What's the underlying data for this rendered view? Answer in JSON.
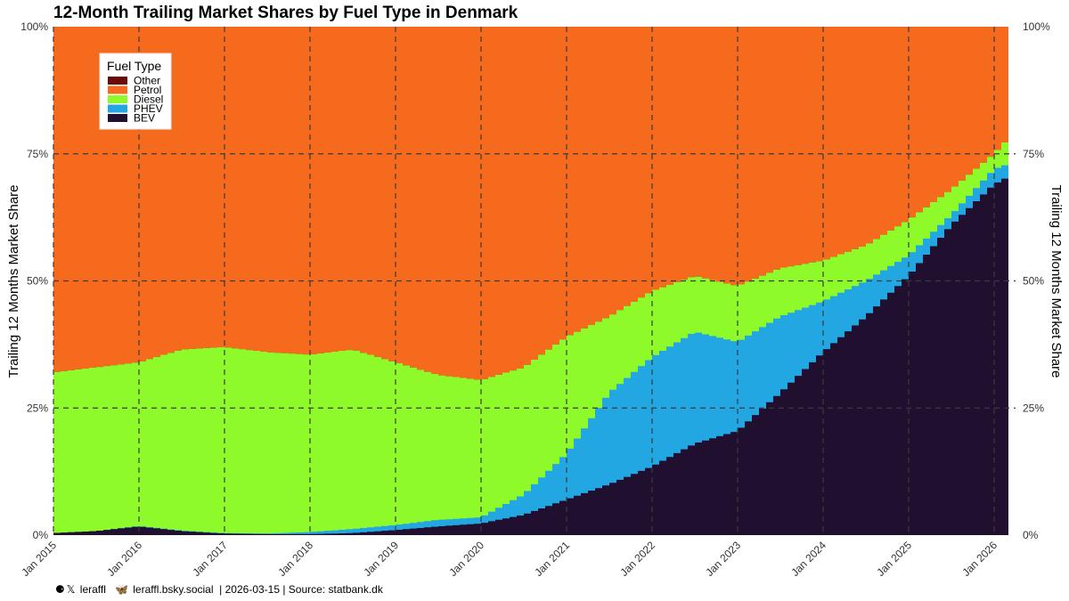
{
  "chart_data": {
    "type": "area",
    "stacked": true,
    "title": "12-Month Trailing Market Shares by Fuel Type in Denmark",
    "ylabel_left": "Trailing 12 Months Market Share",
    "ylabel_right": "Trailing 12 Months Market Share",
    "xlabel": "",
    "ylim": [
      0,
      100
    ],
    "y_ticks": [
      "0%",
      "25%",
      "50%",
      "75%",
      "100%"
    ],
    "x_ticks": [
      "Jan 2015",
      "Jan 2016",
      "Jan 2017",
      "Jan 2018",
      "Jan 2019",
      "Jan 2020",
      "Jan 2021",
      "Jan 2022",
      "Jan 2023",
      "Jan 2024",
      "Jan 2025",
      "Jan 2026"
    ],
    "x_start": "Jan 2015",
    "x_end": "Feb 2026",
    "legend_title": "Fuel Type",
    "legend_position": "top-left",
    "series": [
      {
        "name": "Other",
        "color": "#6b0a0a"
      },
      {
        "name": "Petrol",
        "color": "#f66a1e"
      },
      {
        "name": "Diesel",
        "color": "#8efa2a"
      },
      {
        "name": "PHEV",
        "color": "#22a7e3"
      },
      {
        "name": "BEV",
        "color": "#210f30"
      }
    ],
    "keypoints_cumulative": {
      "t_months": [
        0,
        6,
        12,
        18,
        24,
        30,
        36,
        42,
        48,
        54,
        60,
        66,
        72,
        78,
        84,
        90,
        96,
        102,
        108,
        114,
        120,
        126,
        132,
        134
      ],
      "BEV": [
        0.4,
        0.8,
        1.7,
        0.8,
        0.3,
        0.2,
        0.2,
        0.4,
        1.0,
        1.7,
        2.3,
        4.0,
        7.0,
        10.0,
        13.5,
        18.0,
        20.5,
        28.0,
        36.0,
        43.0,
        51.0,
        61.0,
        69.0,
        70.5
      ],
      "PHEV": [
        0.4,
        0.8,
        1.8,
        0.9,
        0.4,
        0.3,
        0.6,
        1.2,
        2.0,
        3.0,
        3.5,
        8.0,
        16.0,
        28.0,
        35.0,
        40.0,
        38.0,
        43.0,
        46.0,
        50.0,
        55.0,
        63.0,
        72.0,
        73.0
      ],
      "Diesel": [
        32.0,
        33.0,
        34.0,
        36.5,
        37.0,
        36.0,
        35.5,
        36.5,
        34.0,
        31.5,
        30.5,
        33.0,
        39.0,
        43.0,
        48.0,
        51.0,
        49.0,
        52.5,
        54.0,
        57.0,
        62.0,
        68.0,
        75.0,
        78.0
      ],
      "Other": [
        32.0,
        33.0,
        34.0,
        36.5,
        37.0,
        36.0,
        35.5,
        36.5,
        34.0,
        31.5,
        30.5,
        33.0,
        39.0,
        43.0,
        48.0,
        51.0,
        49.0,
        52.5,
        54.0,
        57.0,
        62.0,
        68.0,
        75.0,
        78.0
      ],
      "Petrol": [
        100,
        100,
        100,
        100,
        100,
        100,
        100,
        100,
        100,
        100,
        100,
        100,
        100,
        100,
        100,
        100,
        100,
        100,
        100,
        100,
        100,
        100,
        100,
        100
      ]
    }
  },
  "footer": {
    "handle_x": "leraffl",
    "handle_bsky": "leraffl.bsky.social",
    "meta": "| 2026-03-15 | Source: statbank.dk"
  }
}
